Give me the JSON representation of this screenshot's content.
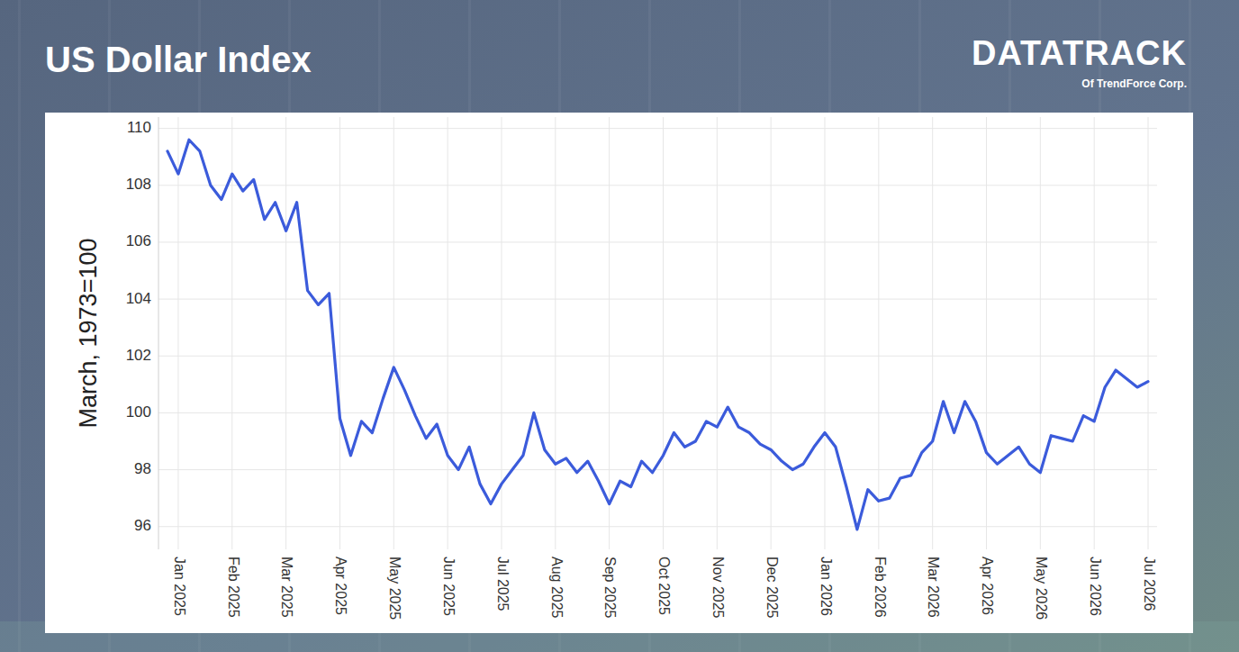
{
  "header": {
    "logo": "DATATRACK",
    "logo_sub": "Of TrendForce Corp."
  },
  "chart_data": {
    "type": "line",
    "title": "US Dollar Index",
    "y_label": "March, 1973=100",
    "color": "#3b5bdb",
    "grid": true,
    "ylim": [
      95.2,
      110.4
    ],
    "yticks": [
      96,
      98,
      100,
      102,
      104,
      106,
      108,
      110
    ],
    "categories": [
      null,
      "Jan 2025",
      null,
      null,
      null,
      null,
      "Feb 2025",
      null,
      null,
      null,
      null,
      "Mar 2025",
      null,
      null,
      null,
      null,
      "Apr 2025",
      null,
      null,
      null,
      null,
      "May 2025",
      null,
      null,
      null,
      null,
      "Jun 2025",
      null,
      null,
      null,
      null,
      "Jul 2025",
      null,
      null,
      null,
      null,
      "Aug 2025",
      null,
      null,
      null,
      null,
      "Sep 2025",
      null,
      null,
      null,
      null,
      "Oct 2025",
      null,
      null,
      null,
      null,
      "Nov 2025",
      null,
      null,
      null,
      null,
      "Dec 2025",
      null,
      null,
      null,
      null,
      "Jan 2026",
      null,
      null,
      null,
      null,
      "Feb 2026",
      null,
      null,
      null,
      null,
      "Mar 2026",
      null,
      null,
      null,
      null,
      "Apr 2026",
      null,
      null,
      null,
      null,
      "May 2026",
      null,
      null,
      null,
      null,
      "Jun 2026",
      null,
      null,
      null,
      null,
      "Jul 2026"
    ],
    "values": [
      109.2,
      108.4,
      109.6,
      109.2,
      108.0,
      107.5,
      108.4,
      107.8,
      108.2,
      106.8,
      107.4,
      106.4,
      107.4,
      104.3,
      103.8,
      104.2,
      99.8,
      98.5,
      99.7,
      99.3,
      100.5,
      101.6,
      100.8,
      99.9,
      99.1,
      99.6,
      98.5,
      98.0,
      98.8,
      97.5,
      96.8,
      97.5,
      98.0,
      98.5,
      100.0,
      98.7,
      98.2,
      98.4,
      97.9,
      98.3,
      97.6,
      96.8,
      97.6,
      97.4,
      98.3,
      97.9,
      98.5,
      99.3,
      98.8,
      99.0,
      99.7,
      99.5,
      100.2,
      99.5,
      99.3,
      98.9,
      98.7,
      98.3,
      98.0,
      98.2,
      98.8,
      99.3,
      98.8,
      97.4,
      95.9,
      97.3,
      96.9,
      97.0,
      97.7,
      97.8,
      98.6,
      99.0,
      100.4,
      99.3,
      100.4,
      99.7,
      98.6,
      98.2,
      98.5,
      98.8,
      98.2,
      97.9,
      99.2,
      99.1,
      99.0,
      99.9,
      99.7,
      100.9,
      101.5,
      101.2,
      100.9,
      101.1
    ]
  }
}
